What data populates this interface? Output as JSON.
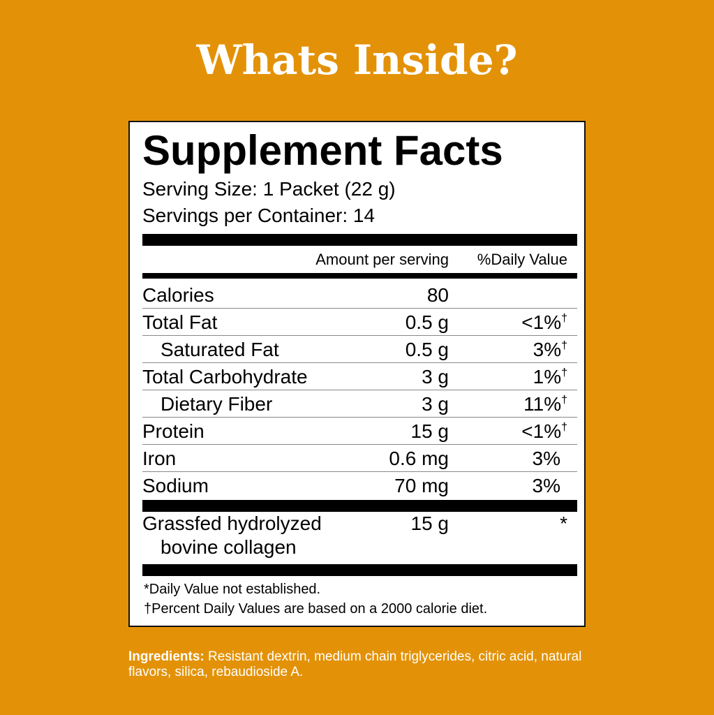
{
  "title": "Whats Inside?",
  "label": {
    "heading": "Supplement Facts",
    "serving_size": "Serving Size: 1 Packet (22 g)",
    "servings_per_container": "Servings per Container: 14",
    "column_headers": [
      "Amount per serving",
      "%Daily Value"
    ],
    "rows": [
      {
        "name": "Calories",
        "amount": "80"
      },
      {
        "name": "Total Fat",
        "amount": "0.5 g",
        "daily_value": "<1%",
        "mark": "†"
      },
      {
        "name": "Saturated Fat",
        "indent": true,
        "amount": "0.5 g",
        "daily_value": "3%",
        "mark": "†"
      },
      {
        "name": "Total Carbohydrate",
        "amount": "3 g",
        "daily_value": "1%",
        "mark": "†"
      },
      {
        "name": "Dietary Fiber",
        "indent": true,
        "amount": "3 g",
        "daily_value": "11%",
        "mark": "†"
      },
      {
        "name": "Protein",
        "amount": "15 g",
        "daily_value": "<1%",
        "mark": "†"
      },
      {
        "name": "Iron",
        "amount": "0.6 mg",
        "daily_value": "3%"
      },
      {
        "name": "Sodium",
        "amount": "70 mg",
        "daily_value": "3%"
      }
    ],
    "other": {
      "name": "Grassfed hydrolyzed bovine collagen",
      "amount": "15 g",
      "daily_value": "*"
    },
    "footnotes": [
      "*Daily Value not established.",
      "†Percent Daily Values are based on a 2000 calorie diet."
    ]
  },
  "ingredients": {
    "label": "Ingredients:",
    "text": "Resistant dextrin, medium chain triglycerides, citric acid, natural flavors, silica, rebaudioside A."
  }
}
